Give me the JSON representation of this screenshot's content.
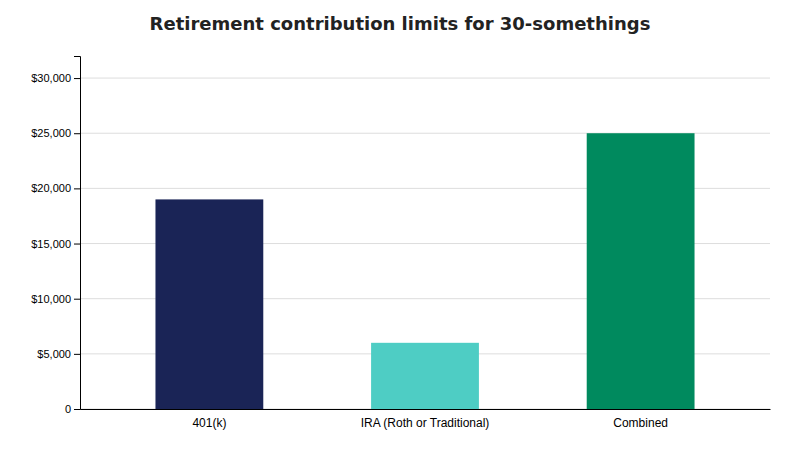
{
  "chart_data": {
    "type": "bar",
    "title": "Retirement contribution limits for 30-somethings",
    "categories": [
      "401(k)",
      "IRA (Roth or Traditional)",
      "Combined"
    ],
    "values": [
      19000,
      6000,
      25000
    ],
    "colors": [
      "#1a2456",
      "#4ecdc4",
      "#008a5e"
    ],
    "ylim": [
      0,
      32000
    ],
    "yticks": [
      0,
      {
        "value": 5000,
        "label": "$5,000"
      },
      {
        "value": 10000,
        "label": "$10,000"
      },
      {
        "value": 15000,
        "label": "$15,000"
      },
      {
        "value": 20000,
        "label": "$20,000"
      },
      {
        "value": 25000,
        "label": "$25,000"
      },
      {
        "value": 30000,
        "label": "$30,000"
      }
    ],
    "grid": true
  }
}
